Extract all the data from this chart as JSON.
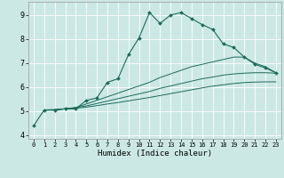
{
  "title": "",
  "xlabel": "Humidex (Indice chaleur)",
  "ylabel": "",
  "bg_color": "#cce8e4",
  "line_color": "#1a6b5a",
  "xlim": [
    -0.5,
    23.5
  ],
  "ylim": [
    3.85,
    9.55
  ],
  "yticks": [
    4,
    5,
    6,
    7,
    8,
    9
  ],
  "xticks": [
    0,
    1,
    2,
    3,
    4,
    5,
    6,
    7,
    8,
    9,
    10,
    11,
    12,
    13,
    14,
    15,
    16,
    17,
    18,
    19,
    20,
    21,
    22,
    23
  ],
  "lines": [
    {
      "x": [
        0,
        1,
        2,
        3,
        4,
        5,
        6,
        7,
        8,
        9,
        10,
        11,
        12,
        13,
        14,
        15,
        16,
        17,
        18,
        19,
        20,
        21,
        22,
        23
      ],
      "y": [
        4.4,
        5.05,
        5.05,
        5.1,
        5.1,
        5.45,
        5.55,
        6.2,
        6.35,
        7.35,
        8.05,
        9.1,
        8.65,
        9.0,
        9.1,
        8.85,
        8.6,
        8.4,
        7.8,
        7.65,
        7.25,
        6.95,
        6.8,
        6.6
      ],
      "marker": true
    },
    {
      "x": [
        1,
        2,
        3,
        4,
        5,
        6,
        7,
        8,
        9,
        10,
        11,
        12,
        13,
        14,
        15,
        16,
        17,
        18,
        19,
        20,
        21,
        22,
        23
      ],
      "y": [
        5.05,
        5.05,
        5.1,
        5.15,
        5.3,
        5.45,
        5.6,
        5.75,
        5.9,
        6.05,
        6.2,
        6.4,
        6.55,
        6.7,
        6.85,
        6.95,
        7.05,
        7.15,
        7.25,
        7.25,
        7.0,
        6.85,
        6.6
      ],
      "marker": false
    },
    {
      "x": [
        1,
        2,
        3,
        4,
        5,
        6,
        7,
        8,
        9,
        10,
        11,
        12,
        13,
        14,
        15,
        16,
        17,
        18,
        19,
        20,
        21,
        22,
        23
      ],
      "y": [
        5.05,
        5.05,
        5.1,
        5.15,
        5.22,
        5.32,
        5.42,
        5.52,
        5.62,
        5.72,
        5.82,
        5.95,
        6.05,
        6.15,
        6.25,
        6.35,
        6.42,
        6.5,
        6.55,
        6.58,
        6.6,
        6.6,
        6.58
      ],
      "marker": false
    },
    {
      "x": [
        1,
        2,
        3,
        4,
        5,
        6,
        7,
        8,
        9,
        10,
        11,
        12,
        13,
        14,
        15,
        16,
        17,
        18,
        19,
        20,
        21,
        22,
        23
      ],
      "y": [
        5.05,
        5.07,
        5.1,
        5.12,
        5.17,
        5.23,
        5.3,
        5.36,
        5.43,
        5.5,
        5.57,
        5.65,
        5.73,
        5.81,
        5.89,
        5.97,
        6.04,
        6.1,
        6.15,
        6.19,
        6.21,
        6.22,
        6.22
      ],
      "marker": false
    }
  ],
  "figsize": [
    3.2,
    2.0
  ],
  "dpi": 100
}
